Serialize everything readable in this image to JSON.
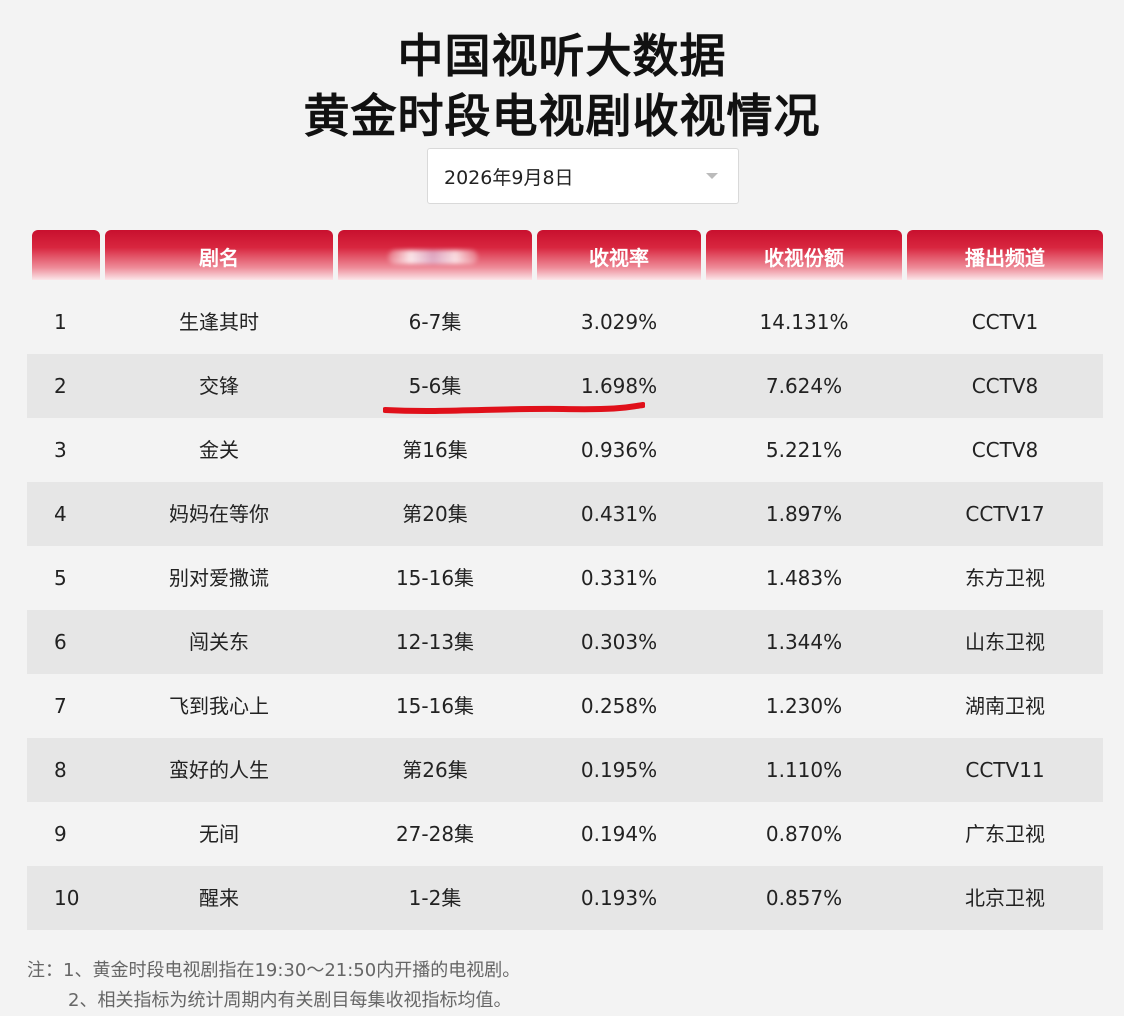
{
  "page": {
    "title_line1": "中国视听大数据",
    "title_line2": "黄金时段电视剧收视情况"
  },
  "date_selector": {
    "value": "2026年9月8日"
  },
  "table": {
    "headers": [
      "",
      "剧名",
      "",
      "收视率",
      "收视份额",
      "播出频道"
    ],
    "rows": [
      {
        "rank": "1",
        "name": "生逢其时",
        "episodes": "6-7集",
        "rating": "3.029%",
        "share": "14.131%",
        "channel": "CCTV1"
      },
      {
        "rank": "2",
        "name": "交锋",
        "episodes": "5-6集",
        "rating": "1.698%",
        "share": "7.624%",
        "channel": "CCTV8"
      },
      {
        "rank": "3",
        "name": "金关",
        "episodes": "第16集",
        "rating": "0.936%",
        "share": "5.221%",
        "channel": "CCTV8"
      },
      {
        "rank": "4",
        "name": "妈妈在等你",
        "episodes": "第20集",
        "rating": "0.431%",
        "share": "1.897%",
        "channel": "CCTV17"
      },
      {
        "rank": "5",
        "name": "别对爱撒谎",
        "episodes": "15-16集",
        "rating": "0.331%",
        "share": "1.483%",
        "channel": "东方卫视"
      },
      {
        "rank": "6",
        "name": "闯关东",
        "episodes": "12-13集",
        "rating": "0.303%",
        "share": "1.344%",
        "channel": "山东卫视"
      },
      {
        "rank": "7",
        "name": "飞到我心上",
        "episodes": "15-16集",
        "rating": "0.258%",
        "share": "1.230%",
        "channel": "湖南卫视"
      },
      {
        "rank": "8",
        "name": "蛮好的人生",
        "episodes": "第26集",
        "rating": "0.195%",
        "share": "1.110%",
        "channel": "CCTV11"
      },
      {
        "rank": "9",
        "name": "无间",
        "episodes": "27-28集",
        "rating": "0.194%",
        "share": "0.870%",
        "channel": "广东卫视"
      },
      {
        "rank": "10",
        "name": "醒来",
        "episodes": "1-2集",
        "rating": "0.193%",
        "share": "0.857%",
        "channel": "北京卫视"
      }
    ]
  },
  "notes": {
    "line1": "注：1、黄金时段电视剧指在19:30～21:50内开播的电视剧。",
    "line2": "2、相关指标为统计周期内有关剧目每集收视指标均值。"
  },
  "colors": {
    "header_red": "#c8102e",
    "underline_red": "#e0101a",
    "alt_row": "#e6e6e6"
  },
  "icons": {
    "date_selector": "chevron-down-icon"
  }
}
